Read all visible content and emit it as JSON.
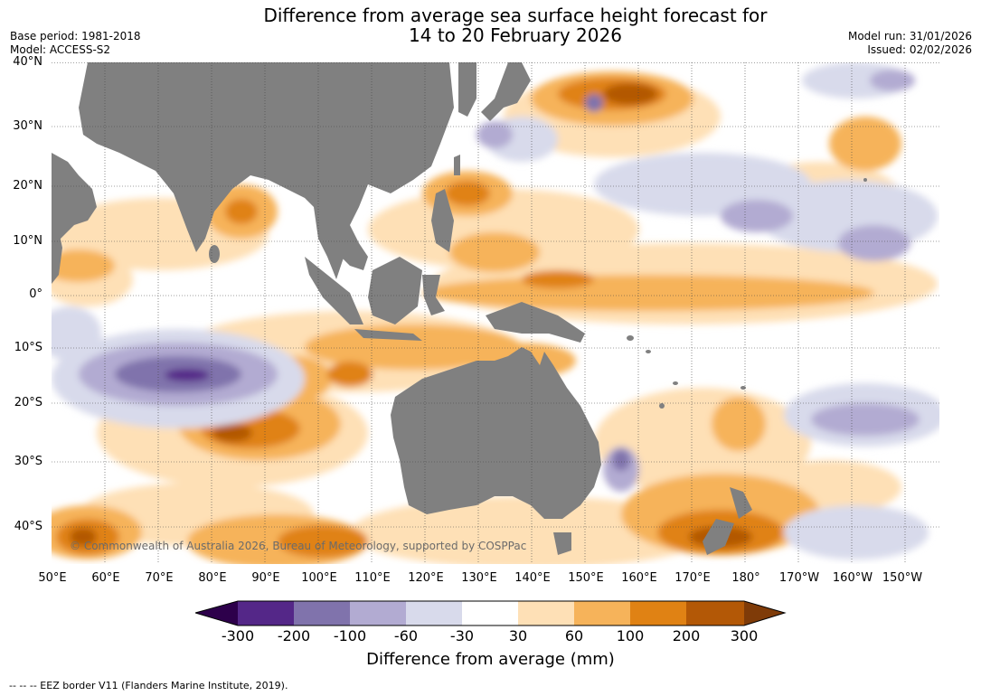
{
  "header": {
    "title_line1": "Difference from average sea surface height forecast for",
    "title_line2": "14 to 20 February 2026",
    "base_period": "Base period: 1981-2018",
    "model": "Model: ACCESS-S2",
    "model_run": "Model run: 31/01/2026",
    "issued": "Issued: 02/02/2026"
  },
  "map": {
    "latitude_labels": [
      "40°N",
      "30°N",
      "20°N",
      "10°N",
      "0°",
      "10°S",
      "20°S",
      "30°S",
      "40°S"
    ],
    "longitude_labels": [
      "50°E",
      "60°E",
      "70°E",
      "80°E",
      "90°E",
      "100°E",
      "110°E",
      "120°E",
      "130°E",
      "140°E",
      "150°E",
      "160°E",
      "170°E",
      "180°",
      "170°W",
      "160°W",
      "150°W"
    ],
    "copyright": "© Commonwealth of Australia 2026, Bureau of Meteorology, supported by COSPPac",
    "land_color": "#808080"
  },
  "colorbar": {
    "label": "Difference from average (mm)",
    "ticks": [
      "-300",
      "-200",
      "-100",
      "-60",
      "-30",
      "30",
      "60",
      "100",
      "200",
      "300"
    ],
    "colors": [
      "#2d004b",
      "#542788",
      "#8073ac",
      "#b2abd2",
      "#d8daeb",
      "#ffffff",
      "#fee0b6",
      "#f6b35a",
      "#e08214",
      "#b35806",
      "#7f3b08"
    ]
  },
  "footnote": "--  --  -- EEZ border V11 (Flanders Marine Institute, 2019)."
}
